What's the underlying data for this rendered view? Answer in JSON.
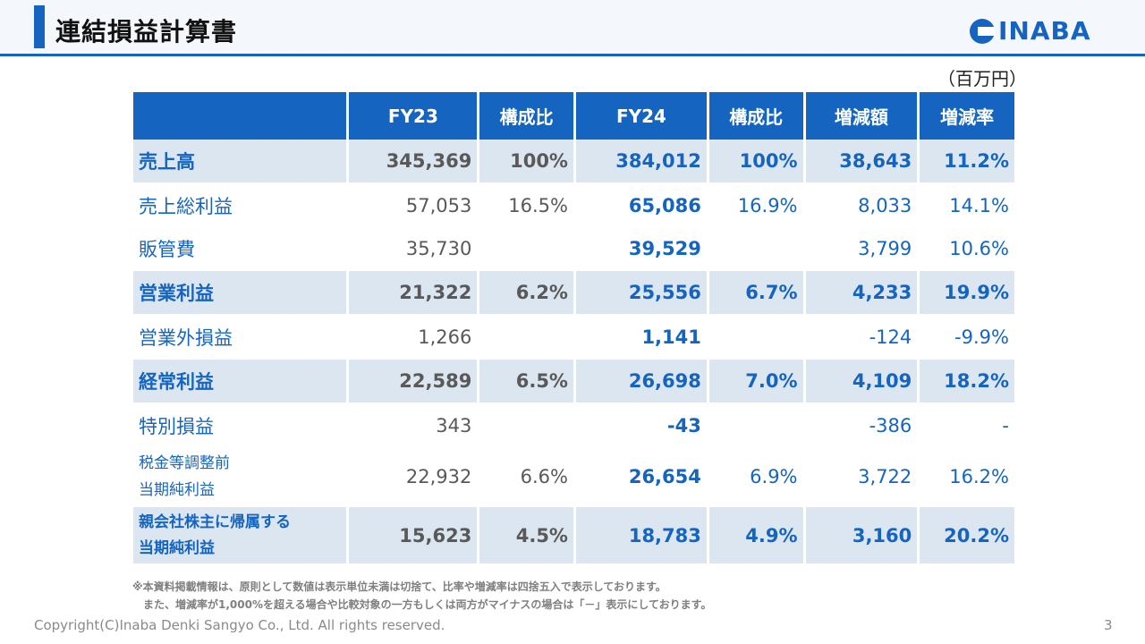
{
  "header": {
    "title": "連結損益計算書",
    "logo_text": "INABA"
  },
  "unit": "（百万円）",
  "table": {
    "columns": [
      "FY23",
      "構成比",
      "FY24",
      "構成比",
      "増減額",
      "増減率"
    ],
    "rows": [
      {
        "label": "売上高",
        "fy23": "345,369",
        "r23": "100%",
        "fy24": "384,012",
        "r24": "100%",
        "diff": "38,643",
        "rate": "11.2%"
      },
      {
        "label": "売上総利益",
        "fy23": "57,053",
        "r23": "16.5%",
        "fy24": "65,086",
        "r24": "16.9%",
        "diff": "8,033",
        "rate": "14.1%"
      },
      {
        "label": "販管費",
        "fy23": "35,730",
        "r23": "",
        "fy24": "39,529",
        "r24": "",
        "diff": "3,799",
        "rate": "10.6%"
      },
      {
        "label": "営業利益",
        "fy23": "21,322",
        "r23": "6.2%",
        "fy24": "25,556",
        "r24": "6.7%",
        "diff": "4,233",
        "rate": "19.9%"
      },
      {
        "label": "営業外損益",
        "fy23": "1,266",
        "r23": "",
        "fy24": "1,141",
        "r24": "",
        "diff": "-124",
        "rate": "-9.9%"
      },
      {
        "label": "経常利益",
        "fy23": "22,589",
        "r23": "6.5%",
        "fy24": "26,698",
        "r24": "7.0%",
        "diff": "4,109",
        "rate": "18.2%"
      },
      {
        "label": "特別損益",
        "fy23": "343",
        "r23": "",
        "fy24": "-43",
        "r24": "",
        "diff": "-386",
        "rate": "-"
      },
      {
        "label_line1": "税金等調整前",
        "label_line2": "当期純利益",
        "fy23": "22,932",
        "r23": "6.6%",
        "fy24": "26,654",
        "r24": "6.9%",
        "diff": "3,722",
        "rate": "16.2%"
      },
      {
        "label_line1": "親会社株主に帰属する",
        "label_line2": "当期純利益",
        "fy23": "15,623",
        "r23": "4.5%",
        "fy24": "18,783",
        "r24": "4.9%",
        "diff": "3,160",
        "rate": "20.2%"
      }
    ]
  },
  "notes": [
    "※本資料掲載情報は、原則として数値は表示単位未満は切捨て、比率や増減率は四捨五入で表示しております。",
    "　また、増減率が1,000%を超える場合や比較対象の一方もしくは両方がマイナスの場合は「－」表示にしております。"
  ],
  "footer": {
    "copyright": "Copyright(C)Inaba Denki Sangyo Co., Ltd. All rights reserved.",
    "page": "3"
  }
}
